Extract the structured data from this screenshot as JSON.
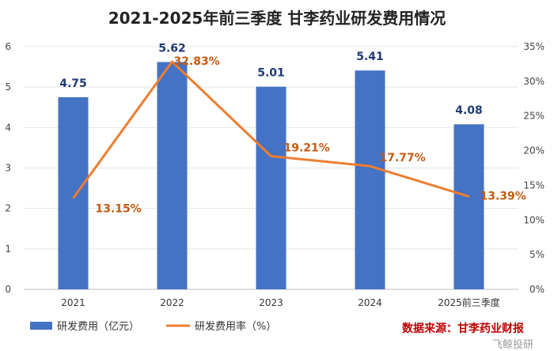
{
  "chart_data": {
    "type": "bar+line",
    "title": "2021-2025年前三季度 甘李药业研发费用情况",
    "categories": [
      "2021",
      "2022",
      "2023",
      "2024",
      "2025前三季度"
    ],
    "series": [
      {
        "name": "研发费用（亿元）",
        "type": "bar",
        "axis": "left",
        "values": [
          4.75,
          5.62,
          5.01,
          5.41,
          4.08
        ],
        "labels": [
          "4.75",
          "5.62",
          "5.01",
          "5.41",
          "4.08"
        ],
        "color": "#4472c4"
      },
      {
        "name": "研发费用率（%）",
        "type": "line",
        "axis": "right",
        "values": [
          13.15,
          32.83,
          19.21,
          17.77,
          13.39
        ],
        "labels": [
          "13.15%",
          "32.83%",
          "19.21%",
          "17.77%",
          "13.39%"
        ],
        "color": "#ed7d31"
      }
    ],
    "y_left": {
      "min": 0,
      "max": 6,
      "ticks": [
        "0",
        "1",
        "2",
        "3",
        "4",
        "5",
        "6"
      ]
    },
    "y_right": {
      "min": 0,
      "max": 35,
      "ticks": [
        "0%",
        "5%",
        "10%",
        "15%",
        "20%",
        "25%",
        "30%",
        "35%"
      ]
    },
    "legend_position": "bottom-left",
    "source": "数据来源：甘李药业财报",
    "watermark": "飞鲸投研"
  }
}
